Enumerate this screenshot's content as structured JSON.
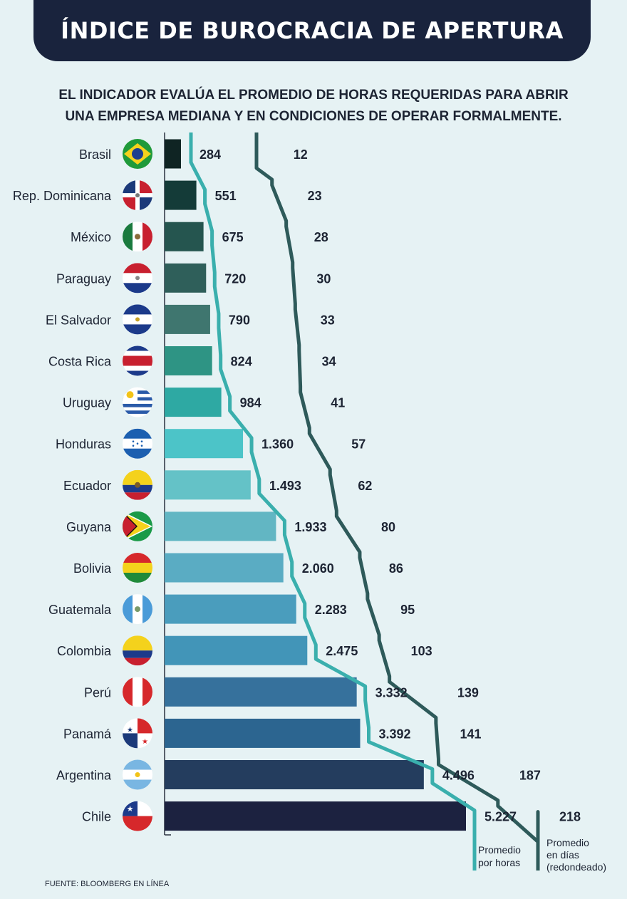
{
  "header": {
    "title": "ÍNDICE DE BUROCRACIA DE APERTURA",
    "subtitle_line1": "EL INDICADOR EVALÚA EL PROMEDIO DE HORAS REQUERIDAS PARA ABRIR",
    "subtitle_line2": "UNA EMPRESA MEDIANA Y EN CONDICIONES DE OPERAR FORMALMENTE."
  },
  "chart_data": {
    "type": "bar",
    "orientation": "horizontal",
    "categories": [
      "Brasil",
      "Rep. Dominicana",
      "México",
      "Paraguay",
      "El Salvador",
      "Costa Rica",
      "Uruguay",
      "Honduras",
      "Ecuador",
      "Guyana",
      "Bolivia",
      "Guatemala",
      "Colombia",
      "Perú",
      "Panamá",
      "Argentina",
      "Chile"
    ],
    "series": [
      {
        "name": "Promedio por horas",
        "values": [
          284,
          551,
          675,
          720,
          790,
          824,
          984,
          1360,
          1493,
          1933,
          2060,
          2283,
          2475,
          3332,
          3392,
          4496,
          5227
        ],
        "labels": [
          "284",
          "551",
          "675",
          "720",
          "790",
          "824",
          "984",
          "1.360",
          "1.493",
          "1.933",
          "2.060",
          "2.283",
          "2.475",
          "3.332",
          "3.392",
          "4.496",
          "5.227"
        ]
      },
      {
        "name": "Promedio en días (redondeado)",
        "values": [
          12,
          23,
          28,
          30,
          33,
          34,
          41,
          57,
          62,
          80,
          86,
          95,
          103,
          139,
          141,
          187,
          218
        ],
        "labels": [
          "12",
          "23",
          "28",
          "30",
          "33",
          "34",
          "41",
          "57",
          "62",
          "80",
          "86",
          "95",
          "103",
          "139",
          "141",
          "187",
          "218"
        ]
      }
    ],
    "bar_colors": [
      "#0f2423",
      "#143b38",
      "#25554f",
      "#2f5f5a",
      "#3f766f",
      "#2e9484",
      "#2ea9a3",
      "#4cc4c8",
      "#64c2c7",
      "#62b6c3",
      "#5aacc3",
      "#4a9dbd",
      "#4295b8",
      "#36719c",
      "#2c6590",
      "#243d5e",
      "#1c2240"
    ],
    "line_colors": {
      "hours": "#3aafad",
      "days": "#2e5a5a"
    },
    "legend": {
      "hours_line1": "Promedio",
      "hours_line2": "por horas",
      "days_line1": "Promedio",
      "days_line2": " en días",
      "days_line3": "(redondeado)"
    }
  },
  "flags": [
    "brasil",
    "rep-dominicana",
    "mexico",
    "paraguay",
    "el-salvador",
    "costa-rica",
    "uruguay",
    "honduras",
    "ecuador",
    "guyana",
    "bolivia",
    "guatemala",
    "colombia",
    "peru",
    "panama",
    "argentina",
    "chile"
  ],
  "source": "FUENTE: BLOOMBERG EN LÍNEA"
}
